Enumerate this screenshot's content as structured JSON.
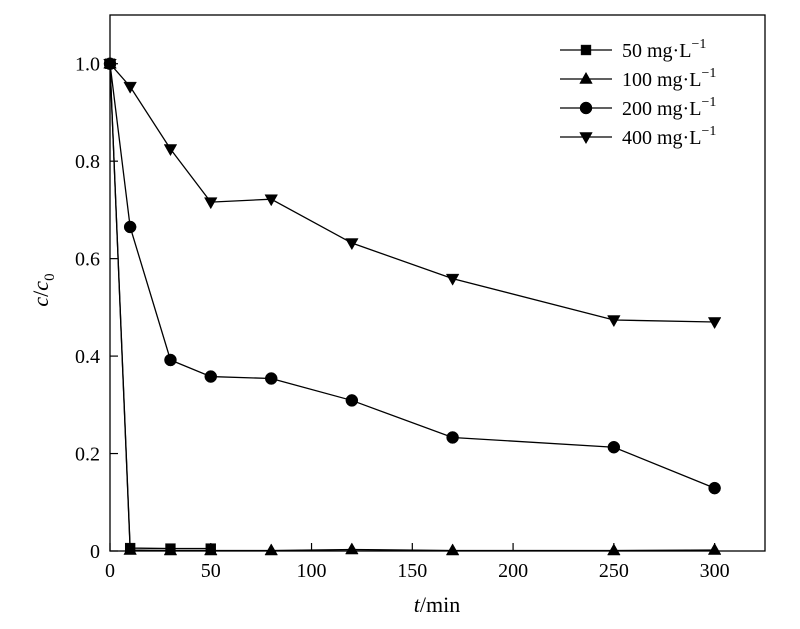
{
  "chart_data": {
    "type": "line",
    "xlabel": {
      "var": "t",
      "unit": "/min"
    },
    "ylabel": {
      "var": "c",
      "sep": "/",
      "var2": "c",
      "sub": "0"
    },
    "xlim": [
      0,
      325
    ],
    "ylim": [
      0,
      1.1
    ],
    "xticks": [
      0,
      50,
      100,
      150,
      200,
      250,
      300
    ],
    "yticks": [
      0,
      0.2,
      0.4,
      0.6,
      0.8,
      1.0
    ],
    "ytick_labels": [
      "0",
      "0.2",
      "0.4",
      "0.6",
      "0.8",
      "1.0"
    ],
    "grid": false,
    "legend_position": "top-right",
    "series": [
      {
        "name": "50 mg·L",
        "name_sup": "−1",
        "marker": "square",
        "x": [
          0,
          10,
          30,
          50
        ],
        "y": [
          1.0,
          0.006,
          0.005,
          0.005
        ]
      },
      {
        "name": "100 mg·L",
        "name_sup": "−1",
        "marker": "triangle-up",
        "x": [
          0,
          10,
          30,
          50,
          80,
          120,
          170,
          250,
          300
        ],
        "y": [
          1.0,
          0.002,
          0.001,
          0.001,
          0.001,
          0.003,
          0.001,
          0.001,
          0.002
        ]
      },
      {
        "name": "200 mg·L",
        "name_sup": "−1",
        "marker": "circle",
        "x": [
          0,
          10,
          30,
          50,
          80,
          120,
          170,
          250,
          300
        ],
        "y": [
          1.0,
          0.665,
          0.392,
          0.358,
          0.354,
          0.309,
          0.233,
          0.213,
          0.129
        ]
      },
      {
        "name": "400 mg·L",
        "name_sup": "−1",
        "marker": "triangle-down",
        "x": [
          0,
          10,
          30,
          50,
          80,
          120,
          170,
          250,
          300
        ],
        "y": [
          1.0,
          0.953,
          0.825,
          0.716,
          0.722,
          0.632,
          0.559,
          0.474,
          0.47
        ]
      }
    ]
  }
}
